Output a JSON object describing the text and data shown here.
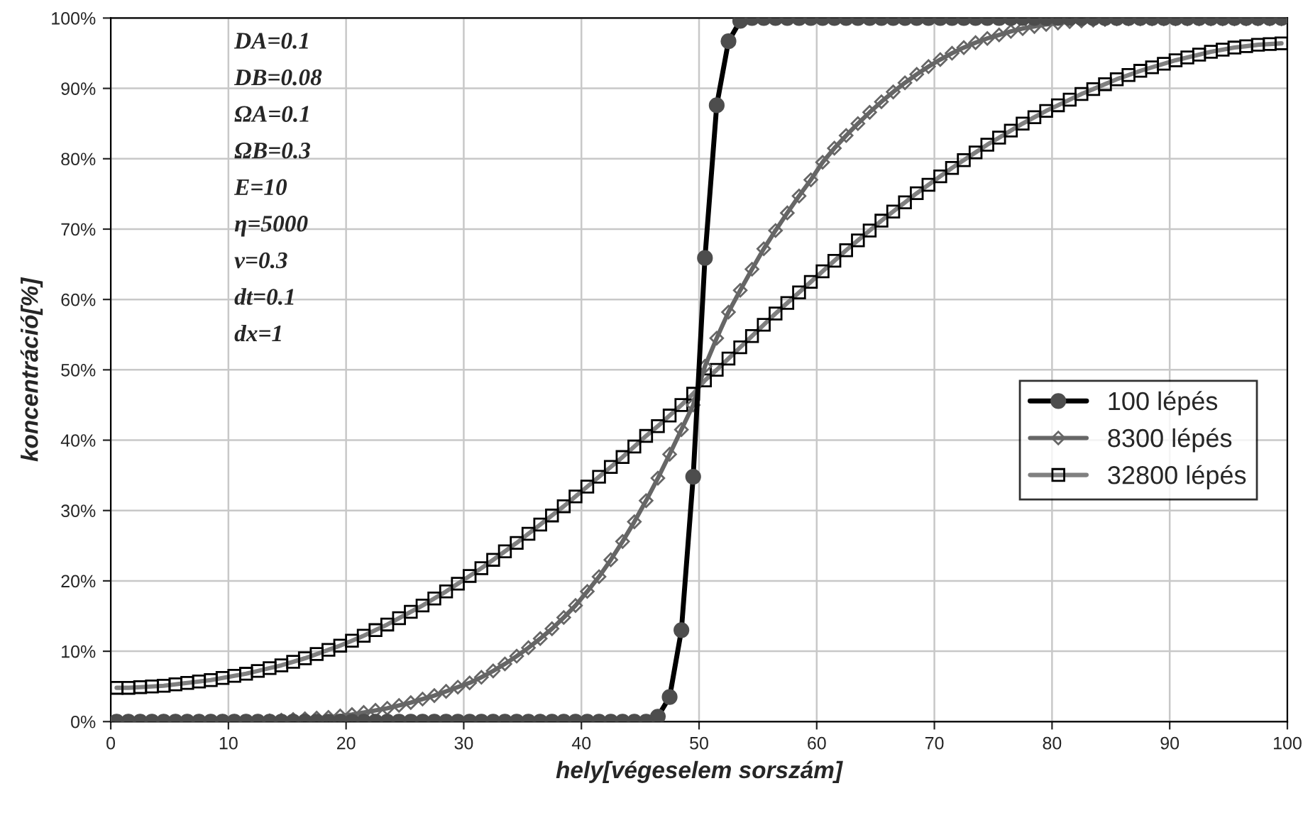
{
  "chart_data": {
    "type": "line",
    "xlabel": "hely[végeselem sorszám]",
    "ylabel": "koncentráció[%]",
    "x": [
      0.5,
      1.5,
      2.5,
      3.5,
      4.5,
      5.5,
      6.5,
      7.5,
      8.5,
      9.5,
      10.5,
      11.5,
      12.5,
      13.5,
      14.5,
      15.5,
      16.5,
      17.5,
      18.5,
      19.5,
      20.5,
      21.5,
      22.5,
      23.5,
      24.5,
      25.5,
      26.5,
      27.5,
      28.5,
      29.5,
      30.5,
      31.5,
      32.5,
      33.5,
      34.5,
      35.5,
      36.5,
      37.5,
      38.5,
      39.5,
      40.5,
      41.5,
      42.5,
      43.5,
      44.5,
      45.5,
      46.5,
      47.5,
      48.5,
      49.5,
      50.5,
      51.5,
      52.5,
      53.5,
      54.5,
      55.5,
      56.5,
      57.5,
      58.5,
      59.5,
      60.5,
      61.5,
      62.5,
      63.5,
      64.5,
      65.5,
      66.5,
      67.5,
      68.5,
      69.5,
      70.5,
      71.5,
      72.5,
      73.5,
      74.5,
      75.5,
      76.5,
      77.5,
      78.5,
      79.5,
      80.5,
      81.5,
      82.5,
      83.5,
      84.5,
      85.5,
      86.5,
      87.5,
      88.5,
      89.5,
      90.5,
      91.5,
      92.5,
      93.5,
      94.5,
      95.5,
      96.5,
      97.5,
      98.5,
      99.5
    ],
    "series": [
      {
        "name": "100 lépés",
        "color": "#000000",
        "marker": "circle",
        "values": [
          0,
          0,
          0,
          0,
          0,
          0,
          0,
          0,
          0,
          0,
          0,
          0,
          0,
          0,
          0,
          0,
          0,
          0,
          0,
          0,
          0,
          0,
          0,
          0,
          0,
          0,
          0,
          0,
          0,
          0,
          0,
          0,
          0,
          0,
          0,
          0,
          0,
          0,
          0,
          0,
          0,
          0,
          0,
          0,
          0,
          0,
          0.7,
          3.5,
          13,
          34.8,
          65.9,
          87.6,
          96.7,
          99.6,
          100,
          100,
          100,
          100,
          100,
          100,
          100,
          100,
          100,
          100,
          100,
          100,
          100,
          100,
          100,
          100,
          100,
          100,
          100,
          100,
          100,
          100,
          100,
          100,
          100,
          100,
          100,
          100,
          100,
          100,
          100,
          100,
          100,
          100,
          100,
          100,
          100,
          100,
          100,
          100,
          100,
          100,
          100,
          100,
          100,
          100
        ]
      },
      {
        "name": "8300 lépés",
        "color": "#666666",
        "marker": "diamond",
        "values": [
          0,
          0,
          0,
          0,
          0,
          0,
          0,
          0,
          0,
          0,
          0,
          0,
          0,
          0.1,
          0.2,
          0.3,
          0.4,
          0.5,
          0.6,
          0.8,
          1.0,
          1.3,
          1.6,
          1.9,
          2.3,
          2.7,
          3.2,
          3.7,
          4.3,
          4.9,
          5.5,
          6.3,
          7.2,
          8.2,
          9.3,
          10.5,
          11.8,
          13.2,
          14.8,
          16.5,
          18.5,
          20.6,
          23.0,
          25.6,
          28.4,
          31.4,
          34.6,
          38.0,
          41.5,
          45.0,
          50.5,
          54.5,
          58.2,
          61.3,
          64.3,
          67.2,
          69.8,
          72.3,
          74.7,
          77.0,
          79.5,
          81.5,
          83.3,
          85.0,
          86.6,
          88.1,
          89.5,
          90.8,
          92.0,
          93.1,
          94.1,
          95.0,
          95.8,
          96.5,
          97.1,
          97.6,
          98.1,
          98.5,
          98.8,
          99.1,
          99.3,
          99.5,
          99.6,
          99.7,
          99.8,
          99.9,
          99.9,
          99.9,
          99.9,
          99.9,
          99.9,
          99.9,
          99.9,
          99.9,
          99.9,
          99.9,
          99.9,
          99.9,
          99.9,
          99.9
        ]
      },
      {
        "name": "32800 lépés",
        "color": "#808080",
        "marker": "square",
        "values": [
          4.8,
          4.8,
          4.9,
          5.0,
          5.1,
          5.3,
          5.5,
          5.7,
          5.9,
          6.2,
          6.5,
          6.8,
          7.2,
          7.6,
          8.0,
          8.5,
          9.0,
          9.6,
          10.2,
          10.8,
          11.5,
          12.2,
          13.0,
          13.8,
          14.7,
          15.6,
          16.5,
          17.5,
          18.5,
          19.6,
          20.7,
          21.8,
          23.0,
          24.2,
          25.4,
          26.7,
          28.0,
          29.3,
          30.6,
          32.0,
          33.4,
          34.8,
          36.2,
          37.6,
          39.1,
          40.6,
          42.0,
          43.5,
          45.0,
          46.6,
          48.5,
          50.0,
          51.6,
          53.2,
          54.8,
          56.4,
          58.0,
          59.5,
          61.0,
          62.5,
          64.0,
          65.5,
          67.0,
          68.4,
          69.8,
          71.2,
          72.5,
          73.8,
          75.1,
          76.3,
          77.5,
          78.7,
          79.8,
          80.9,
          82.0,
          83.0,
          84.0,
          85.0,
          85.9,
          86.8,
          87.6,
          88.4,
          89.2,
          89.9,
          90.6,
          91.3,
          91.9,
          92.5,
          93.0,
          93.5,
          94.0,
          94.4,
          94.8,
          95.2,
          95.5,
          95.8,
          96.0,
          96.2,
          96.3,
          96.4
        ]
      }
    ],
    "xlim": [
      0,
      100
    ],
    "xticks": [
      0,
      10,
      20,
      30,
      40,
      50,
      60,
      70,
      80,
      90,
      100
    ],
    "ylim": [
      0,
      100
    ],
    "yticks": [
      {
        "value": 0,
        "label": "0%"
      },
      {
        "value": 10,
        "label": "10%"
      },
      {
        "value": 20,
        "label": "20%"
      },
      {
        "value": 30,
        "label": "30%"
      },
      {
        "value": 40,
        "label": "40%"
      },
      {
        "value": 50,
        "label": "50%"
      },
      {
        "value": 60,
        "label": "60%"
      },
      {
        "value": 70,
        "label": "70%"
      },
      {
        "value": 80,
        "label": "80%"
      },
      {
        "value": 90,
        "label": "90%"
      },
      {
        "value": 100,
        "label": "100%"
      }
    ],
    "grid": true,
    "legend": "right",
    "line_style": "solid",
    "annotations": [
      "DA=0.1",
      "DB=0.08",
      "ΩA=0.1",
      "ΩB=0.3",
      "E=10",
      "η=5000",
      "ν=0.3",
      "dt=0.1",
      "dx=1"
    ]
  }
}
